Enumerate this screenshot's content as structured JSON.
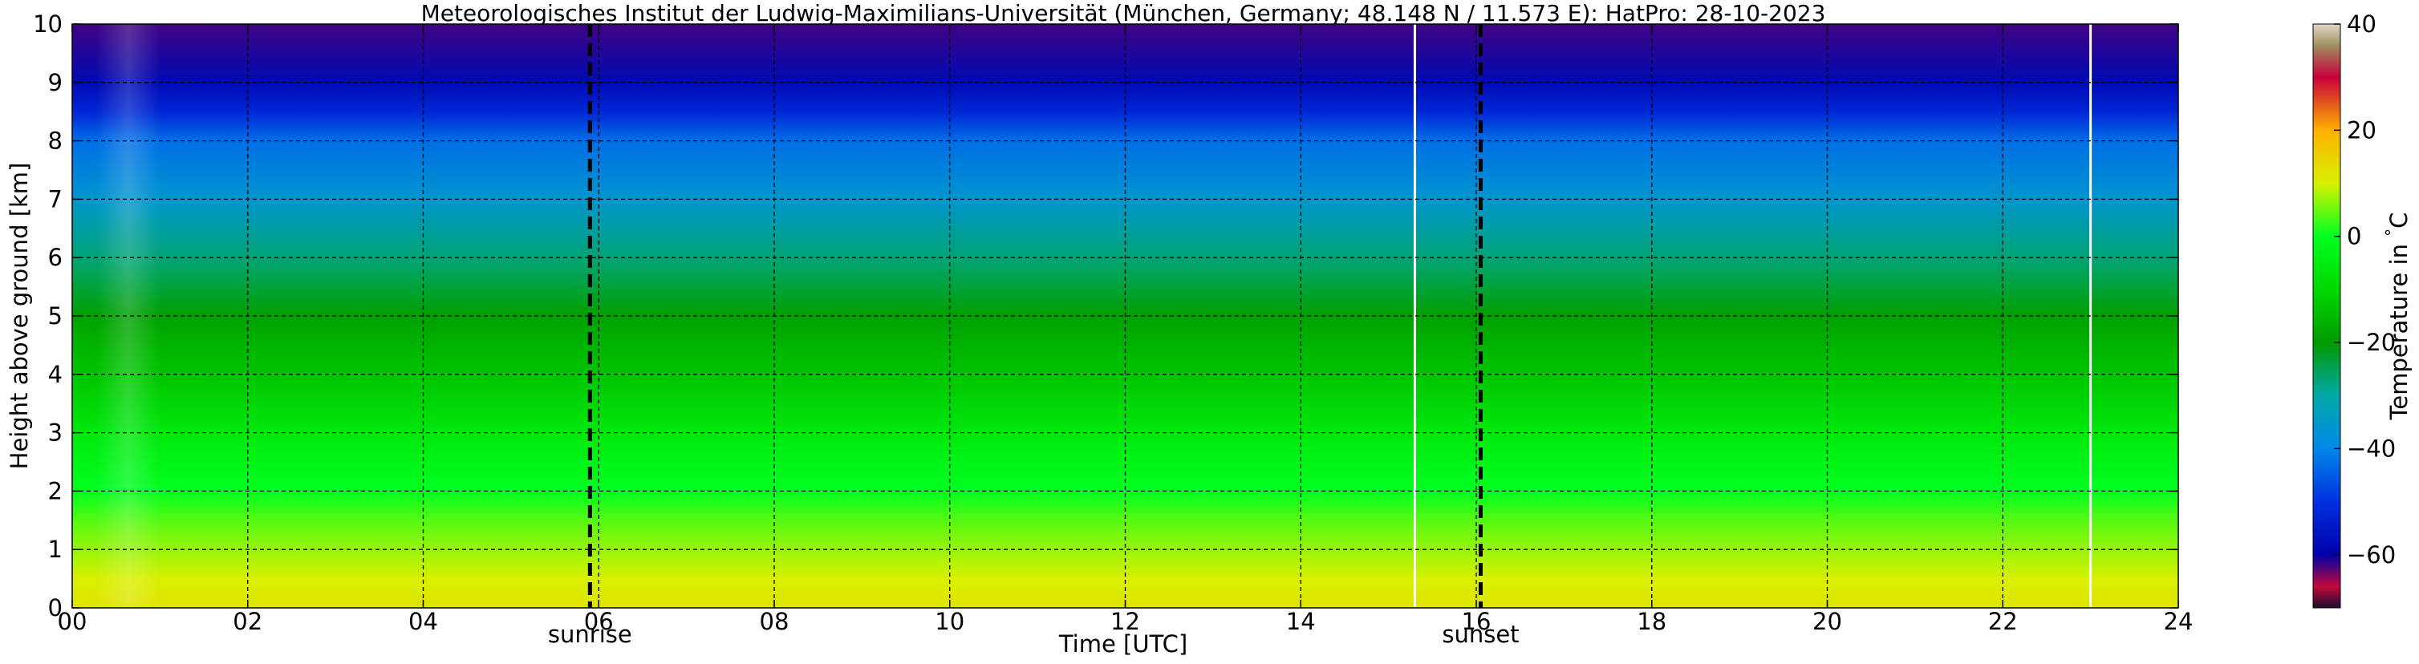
{
  "chart_data": {
    "type": "heatmap",
    "title": "Meteorologisches Institut der Ludwig-Maximilians-Universität (München, Germany; 48.148 N / 11.573 E):    HatPro: 28-10-2023",
    "xlabel": "Time [UTC]",
    "ylabel": "Height above ground [km]",
    "xlim": [
      0,
      24
    ],
    "ylim": [
      0,
      10
    ],
    "x_ticks": [
      0,
      2,
      4,
      6,
      8,
      10,
      12,
      14,
      16,
      18,
      20,
      22,
      24
    ],
    "x_tick_labels": [
      "00",
      "02",
      "04",
      "06",
      "08",
      "10",
      "12",
      "14",
      "16",
      "18",
      "20",
      "22",
      "24"
    ],
    "y_ticks": [
      0,
      1,
      2,
      3,
      4,
      5,
      6,
      7,
      8,
      9,
      10
    ],
    "y_tick_labels": [
      "0",
      "1",
      "2",
      "3",
      "4",
      "5",
      "6",
      "7",
      "8",
      "9",
      "10"
    ],
    "grid": true,
    "events": [
      {
        "label": "sunrise",
        "time": 5.9
      },
      {
        "label": "sunset",
        "time": 16.05
      }
    ],
    "data_gaps": [
      15.3,
      23.0
    ],
    "profile": {
      "height_km": [
        0,
        0.5,
        1,
        1.5,
        2,
        3,
        4,
        5,
        6,
        7,
        8,
        8.5,
        9,
        10
      ],
      "temperature_c": [
        12,
        10,
        7,
        4,
        0,
        -6,
        -13,
        -19,
        -27,
        -36,
        -43,
        -52,
        -58,
        -62
      ]
    },
    "colorbar": {
      "label": "Temperature in $^\\circ$C",
      "range": [
        -70,
        40
      ],
      "ticks": [
        -60,
        -40,
        -20,
        0,
        20,
        40
      ],
      "tick_labels": [
        "−60",
        "−40",
        "−20",
        "0",
        "20",
        "40"
      ],
      "colors": [
        {
          "value": -70,
          "color": "#1a0a2e"
        },
        {
          "value": -66,
          "color": "#c0093a"
        },
        {
          "value": -60,
          "color": "#0000a8"
        },
        {
          "value": -50,
          "color": "#0030e0"
        },
        {
          "value": -40,
          "color": "#0088e8"
        },
        {
          "value": -30,
          "color": "#00a8a8"
        },
        {
          "value": -20,
          "color": "#009a00"
        },
        {
          "value": -10,
          "color": "#00d800"
        },
        {
          "value": 0,
          "color": "#00ff20"
        },
        {
          "value": 10,
          "color": "#d8f000"
        },
        {
          "value": 20,
          "color": "#ffb000"
        },
        {
          "value": 30,
          "color": "#c8003a"
        },
        {
          "value": 36,
          "color": "#a09060"
        },
        {
          "value": 40,
          "color": "#e0d8c8"
        }
      ]
    }
  }
}
